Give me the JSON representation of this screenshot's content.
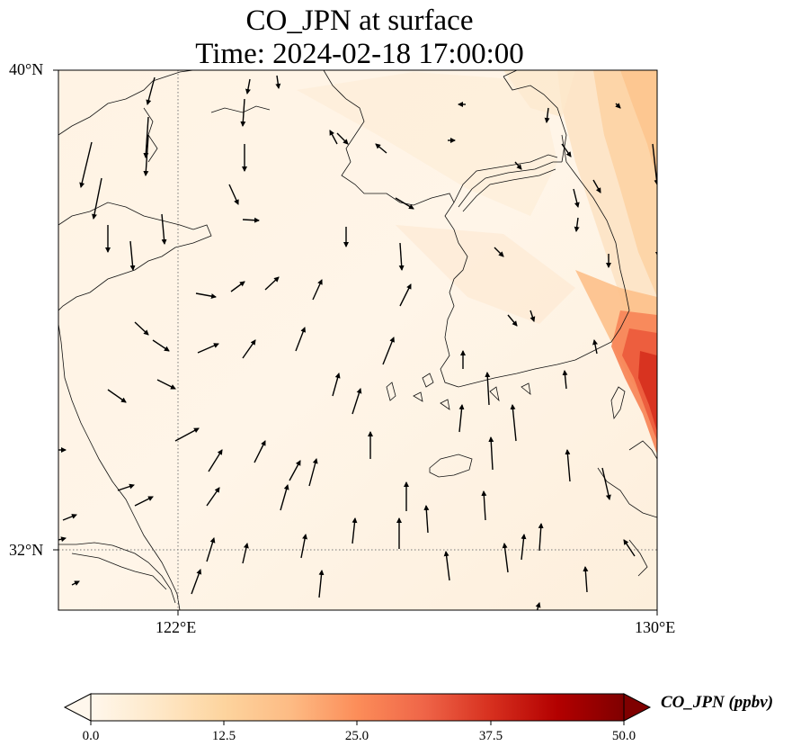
{
  "title": {
    "line1": "CO_JPN at surface",
    "line2": "Time: 2024-02-18 17:00:00"
  },
  "map": {
    "variable": "CO_JPN",
    "level": "surface",
    "lat_range": [
      31,
      40
    ],
    "lon_range": [
      120,
      130
    ],
    "lat_ticks": [
      {
        "value": 40,
        "label": "40°N"
      },
      {
        "value": 32,
        "label": "32°N"
      }
    ],
    "lon_ticks": [
      {
        "value": 122,
        "label": "122°E"
      },
      {
        "value": 130,
        "label": "130°E"
      }
    ],
    "gridlines": {
      "lat": [
        32
      ],
      "lon": [
        122
      ],
      "style": "dotted"
    },
    "wind_vectors": true
  },
  "colorbar": {
    "label": "CO_JPN (ppbv)",
    "min": 0.0,
    "max": 50.0,
    "ticks": [
      "0.0",
      "12.5",
      "25.0",
      "37.5",
      "50.0"
    ],
    "colormap": [
      "#fff7ec",
      "#fee8c8",
      "#fdd49e",
      "#fdbb84",
      "#fc8d59",
      "#ef6548",
      "#d7301f",
      "#b30000",
      "#7f0000"
    ],
    "extend": "both"
  },
  "plume": [
    {
      "label": "high-concentration band along south-east Korean coast",
      "lat": [
        34.5,
        36.0
      ],
      "lon": [
        129.0,
        130.0
      ],
      "value_range": [
        25,
        45
      ]
    },
    {
      "label": "moderate band off east coast of Korea",
      "lat": [
        36.0,
        40.0
      ],
      "lon": [
        128.5,
        130.0
      ],
      "value_range": [
        8,
        20
      ]
    }
  ]
}
